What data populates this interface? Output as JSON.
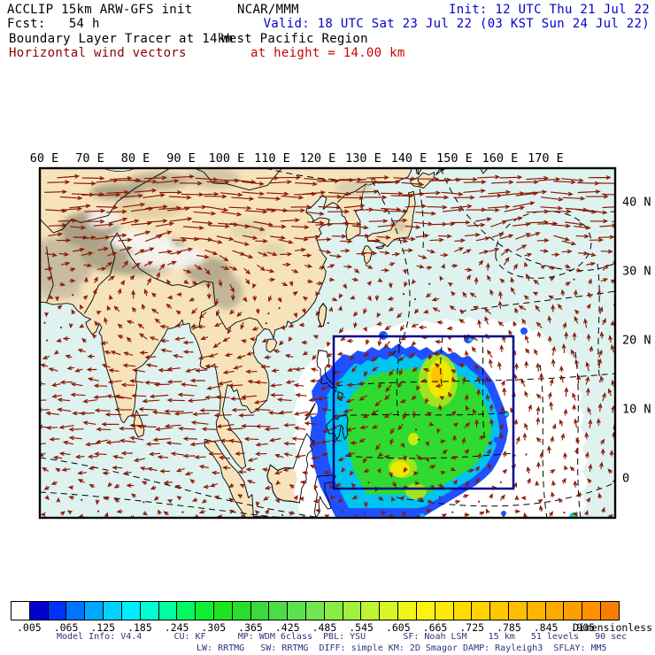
{
  "header": {
    "line1_left": "ACCLIP 15km ARW-GFS init",
    "line1_center": "NCAR/MMM",
    "line1_right": "Init: 12 UTC Thu 21 Jul 22",
    "line2_left": "Fcst:   54 h",
    "line2_right": "Valid: 18 UTC Sat 23 Jul 22 (03 KST Sun 24 Jul 22)",
    "line3_left": "Boundary Layer Tracer at 14km",
    "line3_right": "West Pacific Region",
    "line4_left": "Horizontal wind vectors",
    "line4_right": "at height = 14.00 km",
    "accent_blue": "#0000cc",
    "accent_darkred": "#8b0000",
    "accent_red": "#cc0000"
  },
  "axes": {
    "lon_labels": [
      "60 E",
      "70 E",
      "80 E",
      "90 E",
      "100 E",
      "110 E",
      "120 E",
      "130 E",
      "140 E",
      "150 E",
      "160 E",
      "170 E"
    ],
    "lat_labels": [
      "40 N",
      "30 N",
      "20 N",
      "10 N",
      "0"
    ],
    "lat_values": [
      40,
      30,
      20,
      10,
      0
    ]
  },
  "colorbar": {
    "labels": [
      ".005",
      ".065",
      ".125",
      ".185",
      ".245",
      ".305",
      ".365",
      ".425",
      ".485",
      ".545",
      ".605",
      ".665",
      ".725",
      ".785",
      ".845",
      ".905"
    ],
    "unit": "Dimensionless",
    "cell_colors": [
      "#ffffff",
      "#0000d2",
      "#0032ff",
      "#0073ff",
      "#00a8ff",
      "#00d2ff",
      "#00eeff",
      "#00ffd2",
      "#00ffa0",
      "#00fa64",
      "#0ef132",
      "#1ee41e",
      "#2cdc2c",
      "#3cd83c",
      "#4cdc46",
      "#5ce14e",
      "#70e74e",
      "#88ec46",
      "#a2f03c",
      "#bef432",
      "#d8f626",
      "#eef61c",
      "#fdf312",
      "#ffe908",
      "#ffdc00",
      "#ffd200",
      "#ffc800",
      "#ffbe00",
      "#ffb400",
      "#ffaa00",
      "#ff9e00",
      "#ff9000",
      "#f57f00"
    ]
  },
  "footer": {
    "line1": "Model Info: V4.4      CU: KF      MP: WDM 6class  PBL: YSU       SF: Noah LSM    15 km   51 levels   90 sec",
    "line2": "LW: RRTMG   SW: RRTMG  DIFF: simple KM: 2D Smagor DAMP: Rayleigh3  SFLAY: MM5",
    "text_color": "#32327d"
  },
  "map_style": {
    "ocean": "#def2f0",
    "land": "#f6e3bb",
    "coast": "#000000",
    "vector": "#8b1800",
    "box_stroke": "#00008b",
    "halo": "#ffffff",
    "blob_blue": "#2050ff",
    "blob_cyan": "#00c3f0",
    "blob_green": "#30da30",
    "blob_yellowgreen": "#a0e41e",
    "blob_yellow": "#f0e800",
    "blob_gold": "#ffc400"
  }
}
